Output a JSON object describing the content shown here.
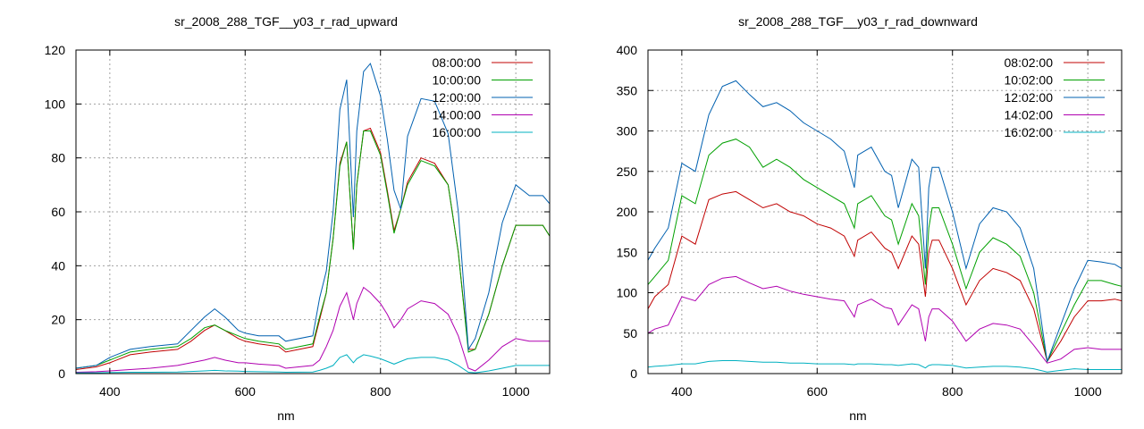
{
  "chart_data": [
    {
      "type": "line",
      "title": "sr_2008_288_TGF__y03_r_rad_upward",
      "xlabel": "nm",
      "ylabel": "",
      "xlim": [
        350,
        1050
      ],
      "ylim": [
        0,
        120
      ],
      "xticks": [
        400,
        600,
        800,
        1000
      ],
      "yticks": [
        0,
        20,
        40,
        60,
        80,
        100,
        120
      ],
      "grid": true,
      "legend_position": "top-right",
      "x": [
        350,
        380,
        400,
        430,
        460,
        500,
        520,
        540,
        555,
        570,
        590,
        600,
        620,
        650,
        660,
        700,
        710,
        720,
        730,
        740,
        750,
        760,
        765,
        775,
        785,
        800,
        810,
        820,
        830,
        840,
        860,
        880,
        900,
        915,
        930,
        940,
        960,
        980,
        1000,
        1020,
        1040,
        1050
      ],
      "series": [
        {
          "name": "08:00:00",
          "color": "#c00000",
          "values": [
            1.5,
            2.5,
            4,
            7,
            8,
            9,
            12,
            16,
            18,
            16,
            13,
            12,
            11,
            10,
            8,
            10,
            20,
            30,
            50,
            78,
            86,
            46,
            70,
            90,
            91,
            82,
            68,
            53,
            61,
            71,
            80,
            78,
            70,
            45,
            9,
            9,
            22,
            40,
            55,
            55,
            55,
            51
          ]
        },
        {
          "name": "10:00:00",
          "color": "#00a000",
          "values": [
            2,
            3,
            5,
            8,
            9,
            10,
            13,
            17,
            18,
            16,
            14,
            13,
            12,
            11,
            9,
            11,
            21,
            30,
            50,
            77,
            86,
            46,
            70,
            90,
            90,
            81,
            67,
            52,
            61,
            70,
            79,
            77,
            70,
            45,
            8,
            9,
            22,
            40,
            55,
            55,
            55,
            51
          ]
        },
        {
          "name": "12:00:00",
          "color": "#0060b0",
          "values": [
            2,
            3,
            6,
            9,
            10,
            11,
            16,
            21,
            24,
            21,
            16,
            15,
            14,
            14,
            12,
            14,
            28,
            38,
            60,
            98,
            109,
            58,
            90,
            112,
            115,
            103,
            87,
            68,
            61,
            88,
            102,
            101,
            89,
            60,
            9,
            13,
            30,
            56,
            70,
            66,
            66,
            63
          ]
        },
        {
          "name": "14:00:00",
          "color": "#b000b0",
          "values": [
            0.5,
            0.7,
            1,
            1.5,
            2,
            3,
            4,
            5,
            6,
            5,
            4,
            4,
            3.5,
            3,
            2,
            3,
            5,
            10,
            16,
            25,
            30,
            20,
            26,
            32,
            30,
            26,
            22,
            17,
            20,
            24,
            27,
            26,
            22,
            14,
            2,
            1,
            5,
            10,
            13,
            12,
            12,
            12
          ]
        },
        {
          "name": "16:00:00",
          "color": "#00b0c0",
          "values": [
            0.3,
            0.3,
            0.4,
            0.5,
            0.5,
            0.6,
            0.8,
            1,
            1.2,
            1,
            0.9,
            0.8,
            0.7,
            0.6,
            0.5,
            0.6,
            1.2,
            2,
            3,
            6,
            7,
            4,
            5.5,
            7,
            6.5,
            5.5,
            4.5,
            3.5,
            4.5,
            5.5,
            6,
            6,
            5,
            3,
            0.5,
            0.3,
            1,
            2,
            3,
            3,
            3,
            3
          ]
        }
      ]
    },
    {
      "type": "line",
      "title": "sr_2008_288_TGF__y03_r_rad_downward",
      "xlabel": "nm",
      "ylabel": "",
      "xlim": [
        350,
        1050
      ],
      "ylim": [
        0,
        400
      ],
      "xticks": [
        400,
        600,
        800,
        1000
      ],
      "yticks": [
        0,
        50,
        100,
        150,
        200,
        250,
        300,
        350,
        400
      ],
      "grid": true,
      "legend_position": "top-right",
      "x": [
        350,
        360,
        380,
        400,
        420,
        440,
        460,
        480,
        500,
        520,
        540,
        560,
        580,
        600,
        620,
        640,
        655,
        660,
        680,
        700,
        710,
        720,
        740,
        750,
        760,
        765,
        770,
        780,
        800,
        820,
        840,
        860,
        880,
        900,
        920,
        940,
        960,
        980,
        1000,
        1020,
        1040,
        1050
      ],
      "series": [
        {
          "name": "08:02:00",
          "color": "#c00000",
          "values": [
            80,
            95,
            110,
            170,
            160,
            215,
            222,
            225,
            215,
            205,
            210,
            200,
            195,
            185,
            180,
            170,
            145,
            165,
            175,
            155,
            150,
            130,
            170,
            160,
            95,
            150,
            165,
            165,
            130,
            85,
            115,
            130,
            125,
            115,
            80,
            15,
            40,
            70,
            90,
            90,
            92,
            90
          ]
        },
        {
          "name": "10:02:00",
          "color": "#00a000",
          "values": [
            110,
            120,
            140,
            220,
            210,
            270,
            285,
            290,
            280,
            255,
            265,
            255,
            240,
            230,
            220,
            210,
            180,
            210,
            220,
            195,
            190,
            160,
            210,
            195,
            110,
            180,
            205,
            205,
            160,
            105,
            150,
            168,
            160,
            145,
            100,
            15,
            50,
            85,
            115,
            115,
            110,
            108
          ]
        },
        {
          "name": "12:02:00",
          "color": "#0060b0",
          "values": [
            140,
            155,
            180,
            260,
            250,
            320,
            355,
            362,
            345,
            330,
            335,
            325,
            310,
            300,
            290,
            275,
            230,
            270,
            280,
            250,
            245,
            205,
            265,
            255,
            130,
            230,
            255,
            255,
            200,
            130,
            185,
            205,
            200,
            180,
            130,
            15,
            60,
            105,
            140,
            138,
            135,
            130
          ]
        },
        {
          "name": "14:02:00",
          "color": "#b000b0",
          "values": [
            50,
            55,
            60,
            95,
            90,
            110,
            118,
            120,
            112,
            105,
            108,
            102,
            98,
            95,
            92,
            90,
            70,
            85,
            92,
            82,
            80,
            60,
            85,
            80,
            40,
            70,
            80,
            80,
            65,
            40,
            55,
            62,
            60,
            55,
            35,
            13,
            18,
            30,
            32,
            30,
            30,
            30
          ]
        },
        {
          "name": "16:02:00",
          "color": "#00b0c0",
          "values": [
            8,
            9,
            10,
            12,
            12,
            15,
            16,
            16,
            15,
            14,
            14,
            13,
            13,
            12,
            12,
            12,
            11,
            12,
            12,
            11,
            11,
            10,
            12,
            11,
            7,
            10,
            11,
            11,
            10,
            7,
            8,
            9,
            9,
            8,
            6,
            2,
            4,
            6,
            5,
            5,
            5,
            5
          ]
        }
      ]
    }
  ]
}
